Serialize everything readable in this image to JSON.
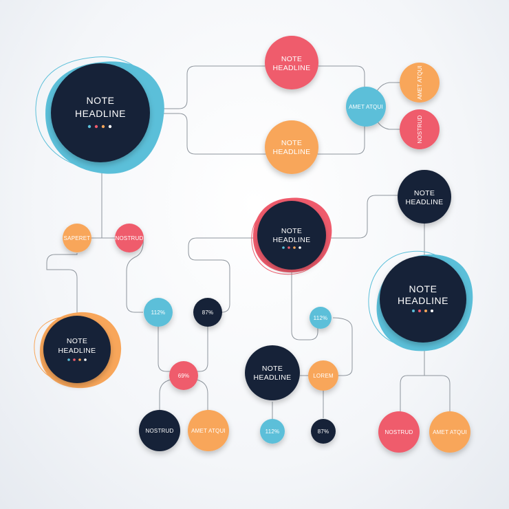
{
  "colors": {
    "navy": "#172338",
    "coral": "#ef5b6c",
    "orange": "#f8a65a",
    "cyan": "#5bbfd9",
    "line": "#8d949c"
  },
  "nodes": {
    "hub_top_left": {
      "line1": "NOTE",
      "line2": "HEADLINE"
    },
    "top_note": {
      "line1": "NOTE",
      "line2": "HEADLINE"
    },
    "mid_note": {
      "line1": "NOTE",
      "line2": "HEADLINE"
    },
    "amet_top": {
      "label": "AMET ATQUI"
    },
    "amet_right": {
      "label": "AMET ATQUI"
    },
    "nostrud_right": {
      "label": "NOSTRUD"
    },
    "hub_center": {
      "line1": "NOTE",
      "line2": "HEADLINE"
    },
    "note_right_small": {
      "line1": "NOTE",
      "line2": "HEADLINE"
    },
    "hub_right": {
      "line1": "NOTE",
      "line2": "HEADLINE"
    },
    "saperet": {
      "label": "SAPERET"
    },
    "nostrud_left": {
      "label": "NOSTRUD"
    },
    "hub_left": {
      "line1": "NOTE",
      "line2": "HEADLINE"
    },
    "pct_112_a": {
      "label": "112%"
    },
    "pct_87_a": {
      "label": "87%"
    },
    "pct_69": {
      "label": "69%"
    },
    "nostrud_bottom": {
      "label": "NOSTRUD"
    },
    "amet_bottom": {
      "label": "AMET ATQUI"
    },
    "pct_112_b": {
      "label": "112%"
    },
    "note_center_low": {
      "line1": "NOTE",
      "line2": "HEADLINE"
    },
    "lorem": {
      "label": "LOREM"
    },
    "pct_112_c": {
      "label": "112%"
    },
    "pct_87_b": {
      "label": "87%"
    },
    "nostrud_br": {
      "label": "NOSTRUD"
    },
    "amet_br": {
      "label": "AMET ATQUI"
    }
  }
}
